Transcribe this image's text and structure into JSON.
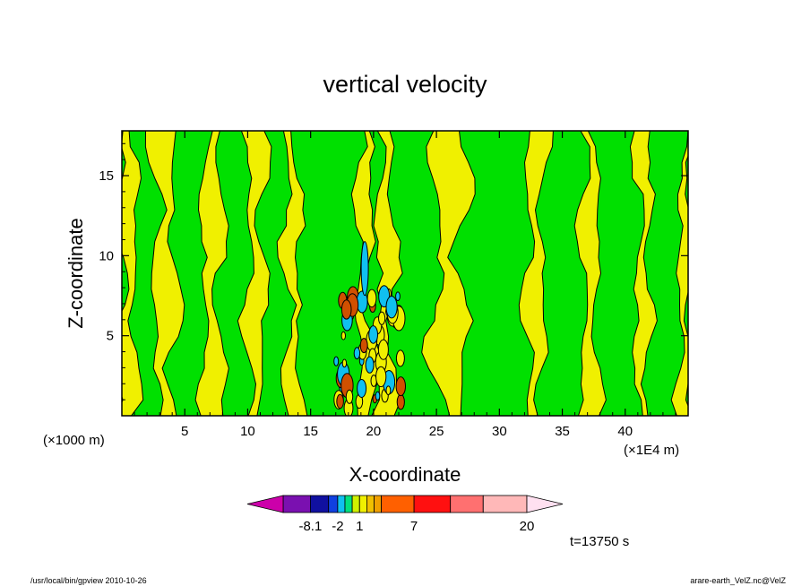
{
  "chart_data": {
    "type": "heatmap",
    "title": "vertical velocity",
    "xlabel": "X-coordinate",
    "ylabel": "Z-coordinate",
    "x_unit_note": "(×1E4 m)",
    "y_unit_note": "(×1000 m)",
    "xlim": [
      0,
      45
    ],
    "ylim": [
      0,
      17.8
    ],
    "x_ticks": [
      5,
      10,
      15,
      20,
      25,
      30,
      35,
      40
    ],
    "y_ticks": [
      5,
      10,
      15
    ],
    "x_tick_labels": [
      "5",
      "10",
      "15",
      "20",
      "25",
      "30",
      "35",
      "40"
    ],
    "y_tick_labels": [
      "5",
      "10",
      "15"
    ],
    "time_label": "t=13750 s",
    "footer_left": "/usr/local/bin/gpview   2010-10-26",
    "footer_right": "arare-earth_VelZ.nc@VelZ",
    "colorbar": {
      "colors": [
        "#cc00aa",
        "#7a10b0",
        "#1010a0",
        "#1040e0",
        "#10c0f0",
        "#00e080",
        "#d0f000",
        "#f0f000",
        "#f0c000",
        "#f0a000",
        "#ff6000",
        "#ff1010",
        "#ff7070",
        "#ffb8b8",
        "#ffe0f0"
      ],
      "tick_labels": [
        "-8.1",
        "-2",
        "1",
        "7",
        "20"
      ],
      "tick_values": [
        -8.1,
        -2,
        1,
        7,
        20
      ]
    },
    "main_colors": {
      "positive_weak": "#f0f000",
      "negative_weak": "#00e000",
      "strong_negative": "#10c0f0",
      "strong_positive": "#d05000",
      "contour": "#000000"
    },
    "vertical_bands": [
      {
        "x": 0.4,
        "w": 1.6,
        "sign": 1
      },
      {
        "x": 1.6,
        "w": 1.2,
        "sign": -1
      },
      {
        "x": 3.4,
        "w": 2.0,
        "sign": 1
      },
      {
        "x": 5.3,
        "w": 1.5,
        "sign": -1
      },
      {
        "x": 7.2,
        "w": 1.8,
        "sign": 1
      },
      {
        "x": 9.0,
        "w": 1.4,
        "sign": -1
      },
      {
        "x": 10.6,
        "w": 1.6,
        "sign": 1
      },
      {
        "x": 12.1,
        "w": 1.2,
        "sign": -1
      },
      {
        "x": 13.6,
        "w": 1.3,
        "sign": 1
      },
      {
        "x": 15.2,
        "w": 1.2,
        "sign": -1
      },
      {
        "x": 17.6,
        "w": 1.6,
        "sign": -1
      },
      {
        "x": 19.3,
        "w": 1.2,
        "sign": 1
      },
      {
        "x": 21.0,
        "w": 1.5,
        "sign": 1
      },
      {
        "x": 23.4,
        "w": 1.6,
        "sign": -1
      },
      {
        "x": 26.0,
        "w": 2.8,
        "sign": 1
      },
      {
        "x": 28.5,
        "w": 1.4,
        "sign": -1
      },
      {
        "x": 30.6,
        "w": 1.8,
        "sign": -1
      },
      {
        "x": 32.8,
        "w": 1.6,
        "sign": 1
      },
      {
        "x": 35.0,
        "w": 1.6,
        "sign": -1
      },
      {
        "x": 37.2,
        "w": 1.5,
        "sign": 1
      },
      {
        "x": 39.3,
        "w": 1.6,
        "sign": -1
      },
      {
        "x": 41.4,
        "w": 1.2,
        "sign": 1
      },
      {
        "x": 43.4,
        "w": 1.4,
        "sign": -1
      },
      {
        "x": 44.8,
        "w": 1.0,
        "sign": 1
      }
    ]
  }
}
